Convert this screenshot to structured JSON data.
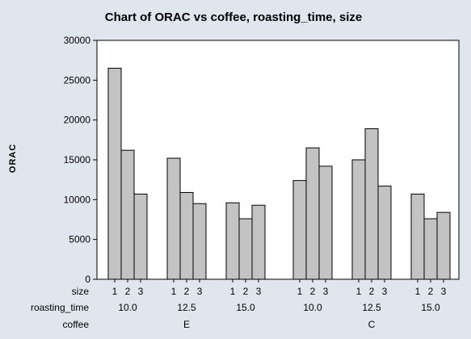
{
  "chart_data": {
    "type": "bar",
    "title": "Chart of ORAC vs coffee, roasting_time, size",
    "ylabel": "ORAC",
    "ylim": [
      0,
      30000
    ],
    "yticks": [
      0,
      5000,
      10000,
      15000,
      20000,
      25000,
      30000
    ],
    "grid": false,
    "row_labels": [
      "size",
      "roasting_time",
      "coffee"
    ],
    "groups": [
      {
        "coffee": "E",
        "roasting_times": [
          {
            "roasting_time": "10.0",
            "sizes": [
              "1",
              "2",
              "3"
            ],
            "values": [
              26500,
              16200,
              10700
            ]
          },
          {
            "roasting_time": "12.5",
            "sizes": [
              "1",
              "2",
              "3"
            ],
            "values": [
              15200,
              10900,
              9500
            ]
          },
          {
            "roasting_time": "15.0",
            "sizes": [
              "1",
              "2",
              "3"
            ],
            "values": [
              9600,
              7600,
              9300
            ]
          }
        ]
      },
      {
        "coffee": "C",
        "roasting_times": [
          {
            "roasting_time": "10.0",
            "sizes": [
              "1",
              "2",
              "3"
            ],
            "values": [
              12400,
              16500,
              14200
            ]
          },
          {
            "roasting_time": "12.5",
            "sizes": [
              "1",
              "2",
              "3"
            ],
            "values": [
              15000,
              18900,
              11700
            ]
          },
          {
            "roasting_time": "15.0",
            "sizes": [
              "1",
              "2",
              "3"
            ],
            "values": [
              10700,
              7600,
              8400
            ]
          }
        ]
      }
    ]
  },
  "colors": {
    "background": "#dfe6ee",
    "plot_area": "#ffffff",
    "bar_fill": "#c3c3c3",
    "bar_stroke": "#000000"
  }
}
